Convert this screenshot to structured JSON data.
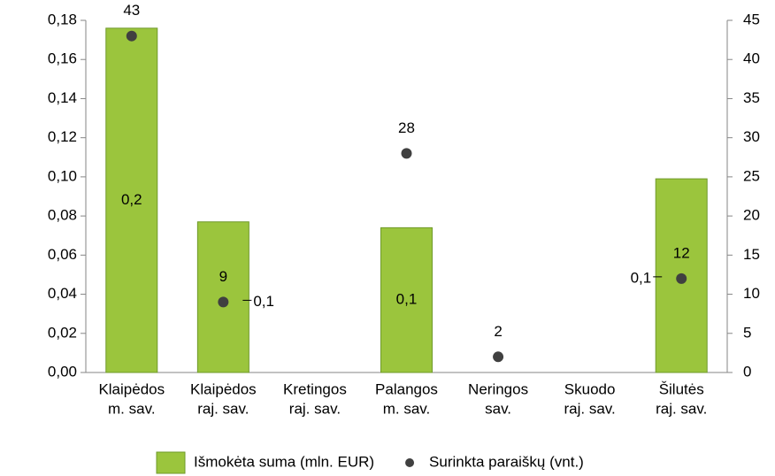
{
  "chart_data": {
    "type": "bar",
    "categories": [
      [
        "Klaipėdos",
        "m. sav."
      ],
      [
        "Klaipėdos",
        "raj. sav."
      ],
      [
        "Kretingos",
        "raj. sav."
      ],
      [
        "Palangos",
        "m. sav."
      ],
      [
        "Neringos",
        "sav."
      ],
      [
        "Skuodo",
        "raj. sav."
      ],
      [
        "Šilutės",
        "raj. sav."
      ]
    ],
    "series": [
      {
        "name": "Išmokėta suma (mln. EUR)",
        "type": "bar",
        "color": "#9bc53d",
        "values": [
          0.176,
          0.077,
          null,
          0.074,
          null,
          null,
          0.099
        ],
        "value_labels": [
          "0,2",
          "0,1",
          null,
          "0,1",
          null,
          null,
          "0,1"
        ]
      },
      {
        "name": "Surinkta paraiškų (vnt.)",
        "type": "scatter",
        "axis": "y2",
        "color": "#404040",
        "values": [
          43,
          9,
          null,
          28,
          2,
          null,
          12
        ]
      }
    ],
    "ylim": [
      0,
      0.18
    ],
    "yticks": [
      {
        "value": 0,
        "label": "0,00"
      },
      {
        "value": 0.02,
        "label": "0,02"
      },
      {
        "value": 0.04,
        "label": "0,04"
      },
      {
        "value": 0.06,
        "label": "0,06"
      },
      {
        "value": 0.08,
        "label": "0,08"
      },
      {
        "value": 0.1,
        "label": "0,10"
      },
      {
        "value": 0.12,
        "label": "0,12"
      },
      {
        "value": 0.14,
        "label": "0,14"
      },
      {
        "value": 0.16,
        "label": "0,16"
      },
      {
        "value": 0.18,
        "label": "0,18"
      }
    ],
    "y2lim": [
      0,
      45
    ],
    "y2ticks": [
      0,
      5,
      10,
      15,
      20,
      25,
      30,
      35,
      40,
      45
    ],
    "legend": "bottom"
  }
}
